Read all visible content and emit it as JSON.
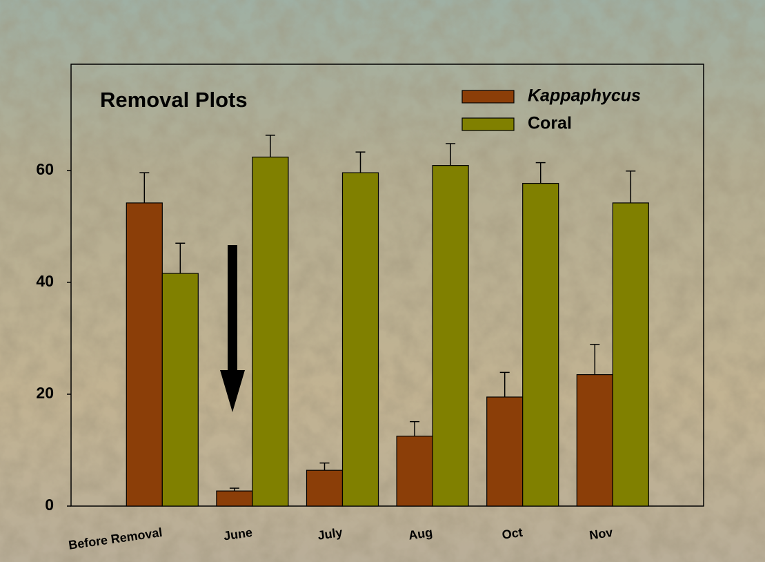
{
  "chart_data": {
    "type": "bar",
    "title": "Removal Plots",
    "categories": [
      "Before Removal",
      "June",
      "July",
      "Aug",
      "Oct",
      "Nov"
    ],
    "series": [
      {
        "name": "Kappaphycus",
        "color": "#8b3e08",
        "values": [
          54.2,
          2.7,
          6.4,
          12.5,
          19.5,
          23.5
        ],
        "errors": [
          5.4,
          0.5,
          1.3,
          2.6,
          4.4,
          5.4
        ]
      },
      {
        "name": "Coral",
        "color": "#808000",
        "values": [
          41.6,
          62.4,
          59.6,
          60.9,
          57.7,
          54.2
        ],
        "errors": [
          5.4,
          3.9,
          3.7,
          3.9,
          3.7,
          5.7
        ]
      }
    ],
    "ylim": [
      0,
      79
    ],
    "yticks": [
      0,
      20,
      40,
      60
    ]
  }
}
